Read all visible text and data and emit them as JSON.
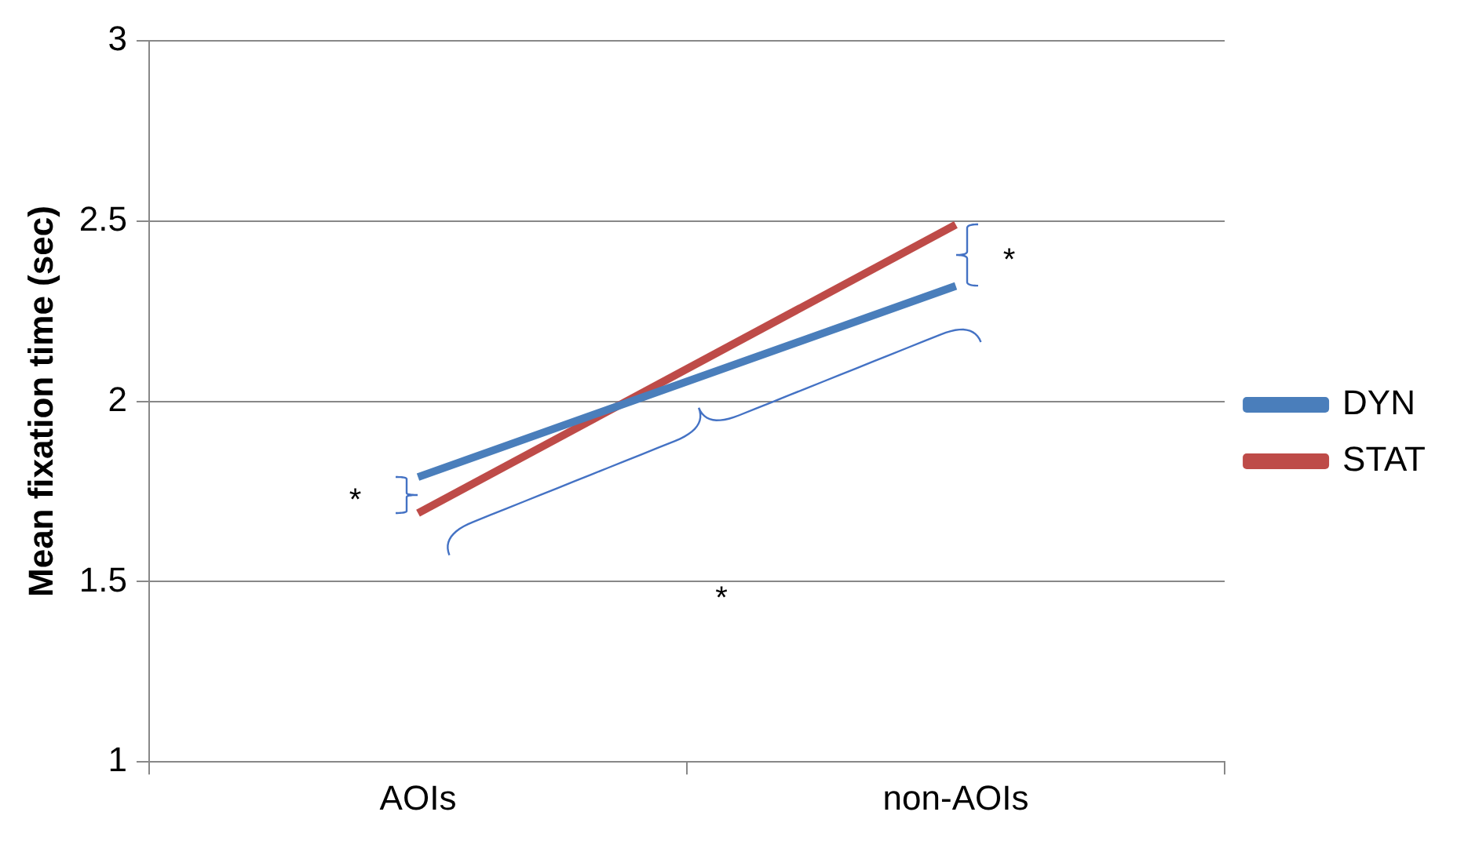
{
  "chart_data": {
    "type": "line",
    "ylabel": "Mean fixation time (sec)",
    "categories": [
      "AOIs",
      "non-AOIs"
    ],
    "series": [
      {
        "name": "DYN",
        "color": "#4a7ebb",
        "values": [
          1.79,
          2.32
        ]
      },
      {
        "name": "STAT",
        "color": "#be4b48",
        "values": [
          1.69,
          2.49
        ]
      }
    ],
    "ylim": [
      1,
      3
    ],
    "yticks": [
      1,
      1.5,
      2,
      2.5,
      3
    ],
    "grid": "y",
    "legend": "right",
    "marker": "none",
    "annotations": [
      "*",
      "*",
      "*"
    ]
  }
}
